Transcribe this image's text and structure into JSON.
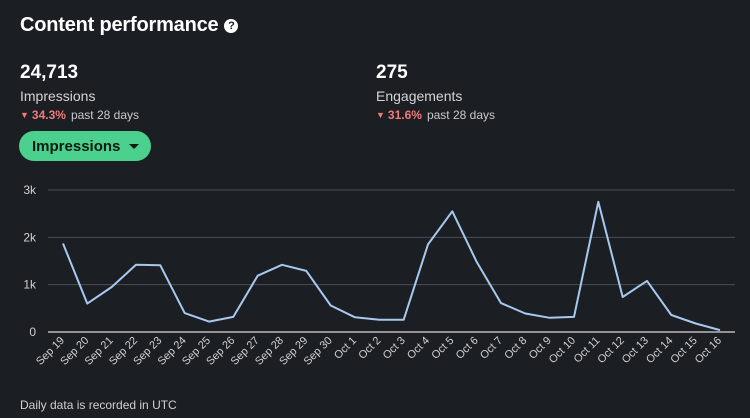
{
  "header": {
    "title": "Content performance",
    "help_icon": "question-circle-icon"
  },
  "metrics": [
    {
      "value": "24,713",
      "label": "Impressions",
      "change": "34.3%",
      "period": "past 28 days",
      "direction_icon": "triangle-down-icon"
    },
    {
      "value": "275",
      "label": "Engagements",
      "change": "31.6%",
      "period": "past 28 days",
      "direction_icon": "triangle-down-icon"
    }
  ],
  "dropdown": {
    "label": "Impressions",
    "icon": "caret-down-icon"
  },
  "colors": {
    "line": "#a8c8f0",
    "accent": "#4cd08d",
    "negative": "#f27a7a",
    "grid": "#4a4f55"
  },
  "chart_data": {
    "type": "line",
    "title": "",
    "xlabel": "",
    "ylabel": "",
    "ylim": [
      0,
      3000
    ],
    "yticks": [
      0,
      1000,
      2000,
      3000
    ],
    "ytick_labels": [
      "0",
      "1k",
      "2k",
      "3k"
    ],
    "categories": [
      "Sep 19",
      "Sep 20",
      "Sep 21",
      "Sep 22",
      "Sep 23",
      "Sep 24",
      "Sep 25",
      "Sep 26",
      "Sep 27",
      "Sep 28",
      "Sep 29",
      "Sep 30",
      "Oct 1",
      "Oct 2",
      "Oct 3",
      "Oct 4",
      "Oct 5",
      "Oct 6",
      "Oct 7",
      "Oct 8",
      "Oct 9",
      "Oct 10",
      "Oct 11",
      "Oct 12",
      "Oct 13",
      "Oct 14",
      "Oct 15",
      "Oct 16"
    ],
    "series": [
      {
        "name": "Impressions",
        "values": [
          1870,
          600,
          950,
          1420,
          1410,
          400,
          220,
          320,
          1190,
          1420,
          1290,
          560,
          310,
          260,
          260,
          1850,
          2550,
          1480,
          610,
          390,
          300,
          320,
          2750,
          740,
          1080,
          360,
          180,
          40
        ]
      }
    ]
  },
  "footnote": "Daily data is recorded in UTC"
}
